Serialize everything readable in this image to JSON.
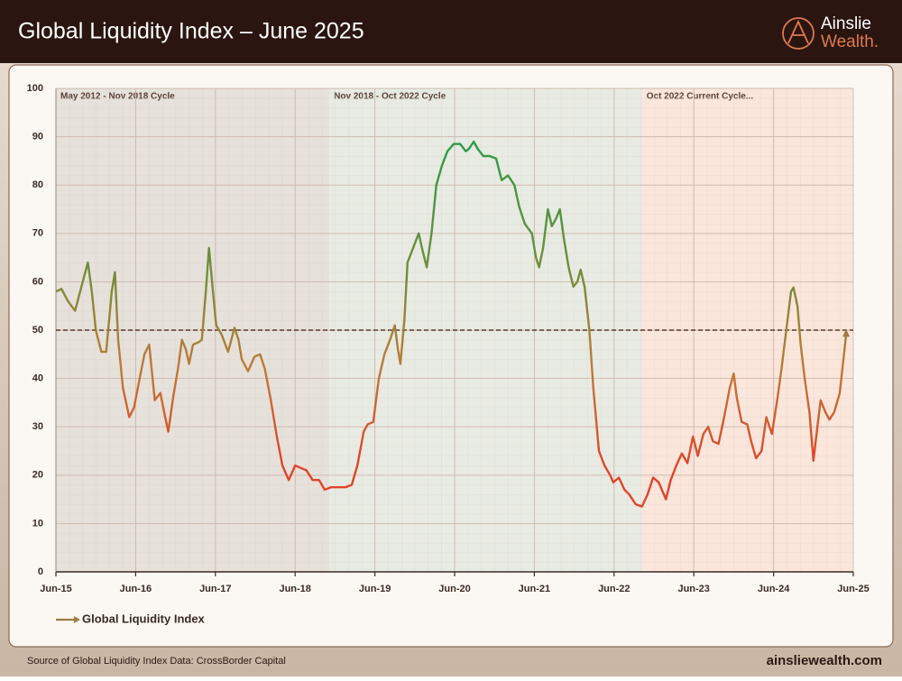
{
  "chart_data": {
    "type": "line",
    "title": "Global Liquidity Index – June 2025",
    "x": [
      2015.5,
      2015.57,
      2015.65,
      2015.74,
      2015.82,
      2015.9,
      2015.95,
      2016.0,
      2016.07,
      2016.13,
      2016.2,
      2016.24,
      2016.28,
      2016.34,
      2016.42,
      2016.48,
      2016.55,
      2016.61,
      2016.67,
      2016.7,
      2016.74,
      2016.81,
      2016.87,
      2016.91,
      2016.97,
      2017.03,
      2017.08,
      2017.13,
      2017.17,
      2017.22,
      2017.29,
      2017.33,
      2017.38,
      2017.42,
      2017.47,
      2017.51,
      2017.58,
      2017.66,
      2017.74,
      2017.79,
      2017.83,
      2017.91,
      2017.99,
      2018.06,
      2018.12,
      2018.19,
      2018.27,
      2018.34,
      2018.42,
      2018.5,
      2018.57,
      2018.64,
      2018.72,
      2018.8,
      2018.87,
      2018.95,
      2019.04,
      2019.13,
      2019.21,
      2019.28,
      2019.36,
      2019.41,
      2019.48,
      2019.55,
      2019.62,
      2019.69,
      2019.75,
      2019.79,
      2019.82,
      2019.87,
      2019.91,
      2019.98,
      2020.05,
      2020.09,
      2020.15,
      2020.21,
      2020.27,
      2020.34,
      2020.41,
      2020.49,
      2020.57,
      2020.64,
      2020.68,
      2020.74,
      2020.79,
      2020.86,
      2020.94,
      2021.02,
      2021.09,
      2021.17,
      2021.25,
      2021.31,
      2021.38,
      2021.47,
      2021.52,
      2021.56,
      2021.61,
      2021.67,
      2021.72,
      2021.77,
      2021.82,
      2021.87,
      2021.93,
      2021.99,
      2022.04,
      2022.08,
      2022.13,
      2022.19,
      2022.24,
      2022.31,
      2022.38,
      2022.45,
      2022.49,
      2022.56,
      2022.63,
      2022.69,
      2022.77,
      2022.85,
      2022.92,
      2022.99,
      2023.06,
      2023.15,
      2023.21,
      2023.28,
      2023.35,
      2023.42,
      2023.49,
      2023.55,
      2023.62,
      2023.68,
      2023.74,
      2023.81,
      2023.88,
      2023.95,
      2024.0,
      2024.04,
      2024.1,
      2024.17,
      2024.22,
      2024.28,
      2024.35,
      2024.41,
      2024.48,
      2024.55,
      2024.6,
      2024.66,
      2024.72,
      2024.75,
      2024.8,
      2024.84,
      2024.89,
      2024.95,
      2025.0,
      2025.05,
      2025.09,
      2025.15,
      2025.2,
      2025.26,
      2025.33,
      2025.41
    ],
    "series": [
      {
        "name": "Global Liquidity Index",
        "color": "#a07a40",
        "values": [
          58,
          58.5,
          56,
          54,
          59,
          64,
          58,
          50,
          45.5,
          45.5,
          58,
          62,
          48,
          38,
          32,
          34,
          40,
          45,
          47,
          42,
          35.5,
          37,
          32,
          29,
          36,
          42,
          48,
          46,
          43,
          47,
          47.5,
          48,
          58,
          67,
          58,
          51,
          49,
          45.5,
          50.5,
          48,
          44,
          41.5,
          44.5,
          45,
          42,
          36,
          28,
          22,
          19,
          22,
          21.5,
          21,
          19,
          19,
          17,
          17.5,
          17.5,
          17.5,
          18,
          22,
          29,
          30.5,
          31,
          40,
          45,
          48,
          51,
          46,
          43,
          52,
          64,
          67,
          70,
          67,
          63,
          70,
          80,
          84,
          87,
          88.5,
          88.5,
          87,
          87.5,
          89,
          87.5,
          86,
          86,
          85.5,
          81,
          82,
          80,
          75.5,
          72,
          70,
          65,
          63,
          67,
          75,
          71.5,
          73,
          75,
          69,
          63,
          59,
          60,
          62.5,
          59,
          50,
          38,
          25,
          22,
          20,
          18.5,
          19.5,
          17,
          16,
          14,
          13.5,
          16,
          19.5,
          18.5,
          15,
          19,
          22,
          24.5,
          22.5,
          28,
          24,
          28.5,
          30,
          27,
          26.5,
          32,
          38,
          41,
          36,
          31,
          30.5,
          27,
          23.5,
          25,
          32,
          28.5,
          36,
          42,
          50,
          58,
          58.8,
          55,
          47,
          40,
          33,
          23,
          30,
          35.5,
          33,
          31.5,
          33,
          37,
          49
        ]
      }
    ],
    "line_colors": [
      "#2e9b48",
      "#7f8a38",
      "#c07a38",
      "#e0442a"
    ],
    "xlim": [
      2015.5,
      2025.5
    ],
    "xticks": [
      {
        "value": 2015.5,
        "label": "Jun-15"
      },
      {
        "value": 2016.5,
        "label": "Jun-16"
      },
      {
        "value": 2017.5,
        "label": "Jun-17"
      },
      {
        "value": 2018.5,
        "label": "Jun-18"
      },
      {
        "value": 2019.5,
        "label": "Jun-19"
      },
      {
        "value": 2020.5,
        "label": "Jun-20"
      },
      {
        "value": 2021.5,
        "label": "Jun-21"
      },
      {
        "value": 2022.5,
        "label": "Jun-22"
      },
      {
        "value": 2023.5,
        "label": "Jun-23"
      },
      {
        "value": 2024.5,
        "label": "Jun-24"
      },
      {
        "value": 2025.5,
        "label": "Jun-25"
      }
    ],
    "ylim": [
      0,
      100
    ],
    "yticks": [
      0,
      10,
      20,
      30,
      40,
      50,
      60,
      70,
      80,
      90,
      100
    ],
    "grid": true,
    "reference_line": 50,
    "regions": [
      {
        "label": "May 2012 - Nov 2018 Cycle",
        "end": 2018.93,
        "color": "#e6e1db"
      },
      {
        "label": "Nov 2018 - Oct 2022 Cycle",
        "end": 2022.85,
        "color": "#e8ebe3"
      },
      {
        "label": "Oct 2022 Current Cycle...",
        "color": "#fbe6dc"
      }
    ],
    "legend": "bottom-left"
  },
  "brand": {
    "name": "Ainslie",
    "suffix": "Wealth."
  },
  "footer": {
    "source": "Source of Global Liquidity Index Data: CrossBorder Capital",
    "website": "ainsliewealth.com"
  }
}
